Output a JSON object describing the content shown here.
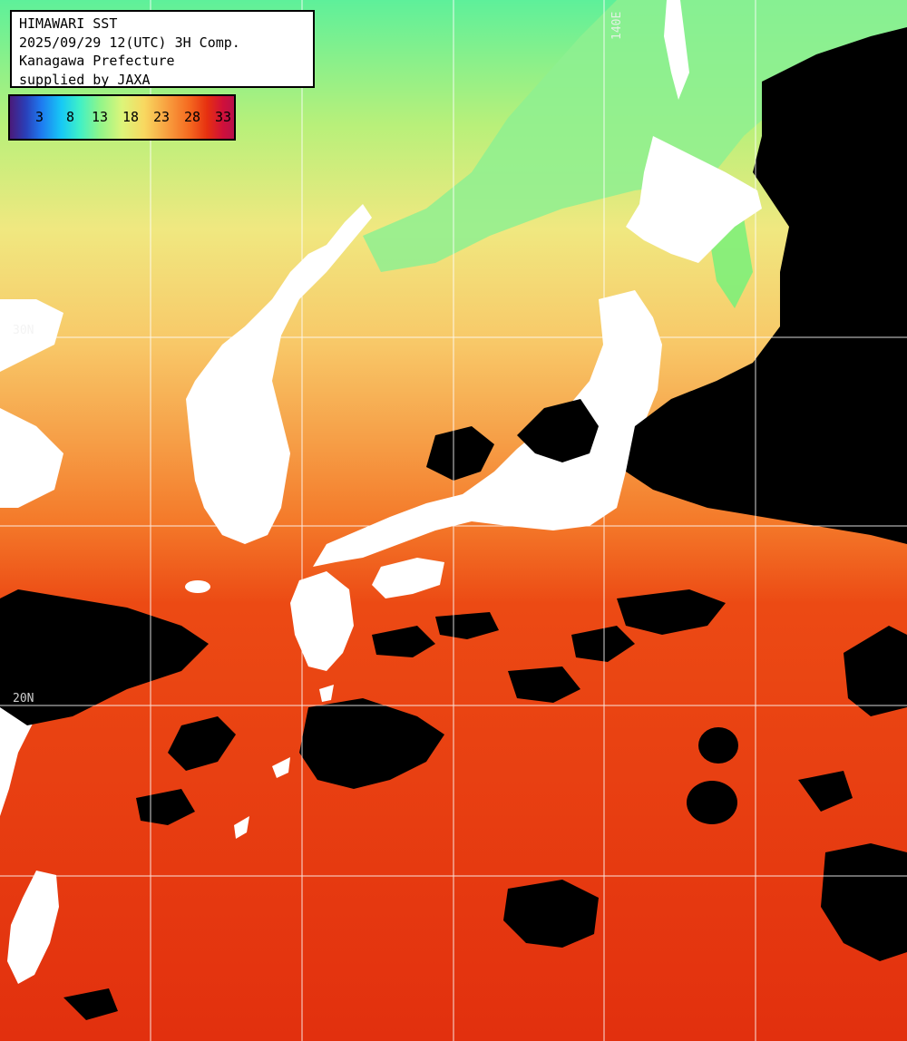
{
  "header": {
    "line1": "HIMAWARI SST",
    "line2": "2025/09/29 12(UTC) 3H Comp.",
    "line3": "Kanagawa Prefecture",
    "line4": "supplied by JAXA"
  },
  "legend": {
    "ticks": [
      "3",
      "8",
      "13",
      "18",
      "23",
      "28",
      "33"
    ]
  },
  "grid_labels": {
    "lon_140": "140E",
    "lat_30": "30N",
    "lat_20": "20N"
  },
  "colors": {
    "cloud": "#000000",
    "land": "#ffffff",
    "cold_sea": "#7ef07a",
    "mid_sea": "#f6e080",
    "warm_sea": "#f88a30",
    "hot_sea": "#e8300e",
    "grid": "#ffffff"
  }
}
